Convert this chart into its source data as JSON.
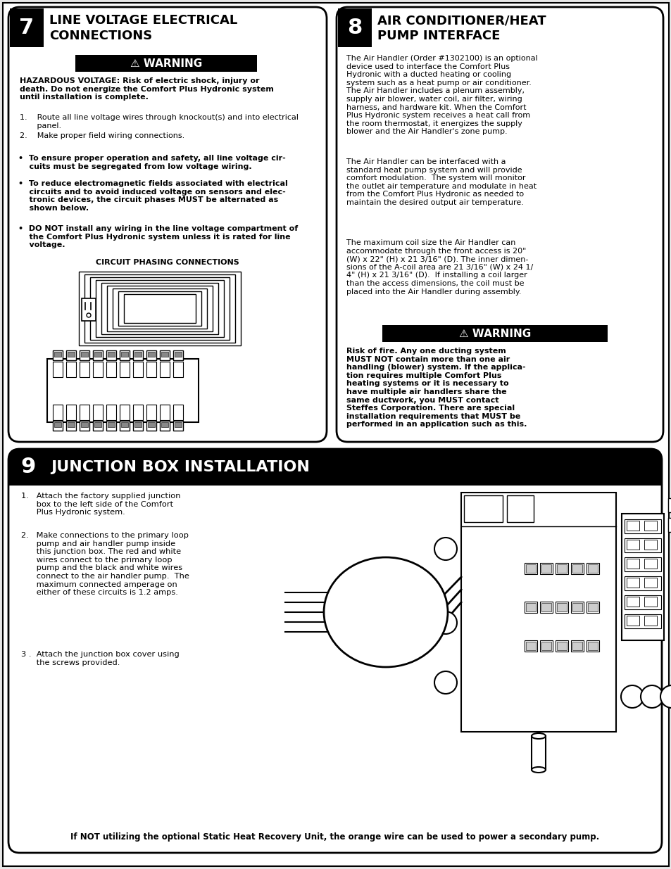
{
  "bg_color": "#ffffff",
  "page_bg": "#e8e8e8",
  "section7_title_line1": "LINE VOLTAGE ELECTRICAL",
  "section7_title_line2": "CONNECTIONS",
  "section7_num": "7",
  "section8_title_line1": "AIR CONDITIONER/HEAT",
  "section8_title_line2": "PUMP INTERFACE",
  "section8_num": "8",
  "section9_title": "JUNCTION BOX INSTALLATION",
  "section9_num": "9",
  "warning_text": "⚠ WARNING",
  "section7_warning_body_bold": "HAZARDOUS VOLTAGE: Risk of electric shock, injury or\ndeath. Do not energize the Comfort Plus Hydronic system\nuntil installation is complete.",
  "section7_item1": "1.    Route all line voltage wires through knockout(s) and into electrical\n       panel.",
  "section7_item2": "2.    Make proper field wiring connections.",
  "section7_bullet1_bold": "•  To ensure proper operation and safety, all line voltage cir-\n    cuits must be segregated from low voltage wiring.",
  "section7_bullet2_bold": "•  To reduce electromagnetic fields associated with electrical\n    circuits and to avoid induced voltage on sensors and elec-\n    tronic devices, the circuit phases MUST be alternated as\n    shown below.",
  "section7_bullet3_bold": "•  DO NOT install any wiring in the line voltage compartment of\n    the Comfort Plus Hydronic system unless it is rated for line\n    voltage.",
  "circuit_phasing_label": "CIRCUIT PHASING CONNECTIONS",
  "section8_para1": "The Air Handler (Order #1302100) is an optional\ndevice used to interface the Comfort Plus\nHydronic with a ducted heating or cooling\nsystem such as a heat pump or air conditioner.\nThe Air Handler includes a plenum assembly,\nsupply air blower, water coil, air filter, wiring\nharness, and hardware kit. When the Comfort\nPlus Hydronic system receives a heat call from\nthe room thermostat, it energizes the supply\nblower and the Air Handler's zone pump.",
  "section8_para2": "The Air Handler can be interfaced with a\nstandard heat pump system and will provide\ncomfort modulation.  The system will monitor\nthe outlet air temperature and modulate in heat\nfrom the Comfort Plus Hydronic as needed to\nmaintain the desired output air temperature.",
  "section8_para3": "The maximum coil size the Air Handler can\naccommodate through the front access is 20\"\n(W) x 22\" (H) x 21 3/16\" (D). The inner dimen-\nsions of the A-coil area are 21 3/16\" (W) x 24 1/\n4\" (H) x 21 3/16\" (D).  If installing a coil larger\nthan the access dimensions, the coil must be\nplaced into the Air Handler during assembly.",
  "section8_warning_body": "Risk of fire. Any one ducting system\nMUST NOT contain more than one air\nhandling (blower) system. If the applica-\ntion requires multiple Comfort Plus\nheating systems or it is necessary to\nhave multiple air handlers share the\nsame ductwork, you MUST contact\nSteffes Corporation. There are special\ninstallation requirements that MUST be\nperformed in an application such as this.",
  "section9_item1": "1.   Attach the factory supplied junction\n      box to the left side of the Comfort\n      Plus Hydronic system.",
  "section9_item2": "2.   Make connections to the primary loop\n      pump and air handler pump inside\n      this junction box. The red and white\n      wires connect to the primary loop\n      pump and the black and white wires\n      connect to the air handler pump.  The\n      maximum connected amperage on\n      either of these circuits is 1.2 amps.",
  "section9_item3": "3 .  Attach the junction box cover using\n      the screws provided.",
  "section9_footer": "If NOT utilizing the optional Static Heat Recovery Unit, the orange wire can be used to power a secondary pump."
}
